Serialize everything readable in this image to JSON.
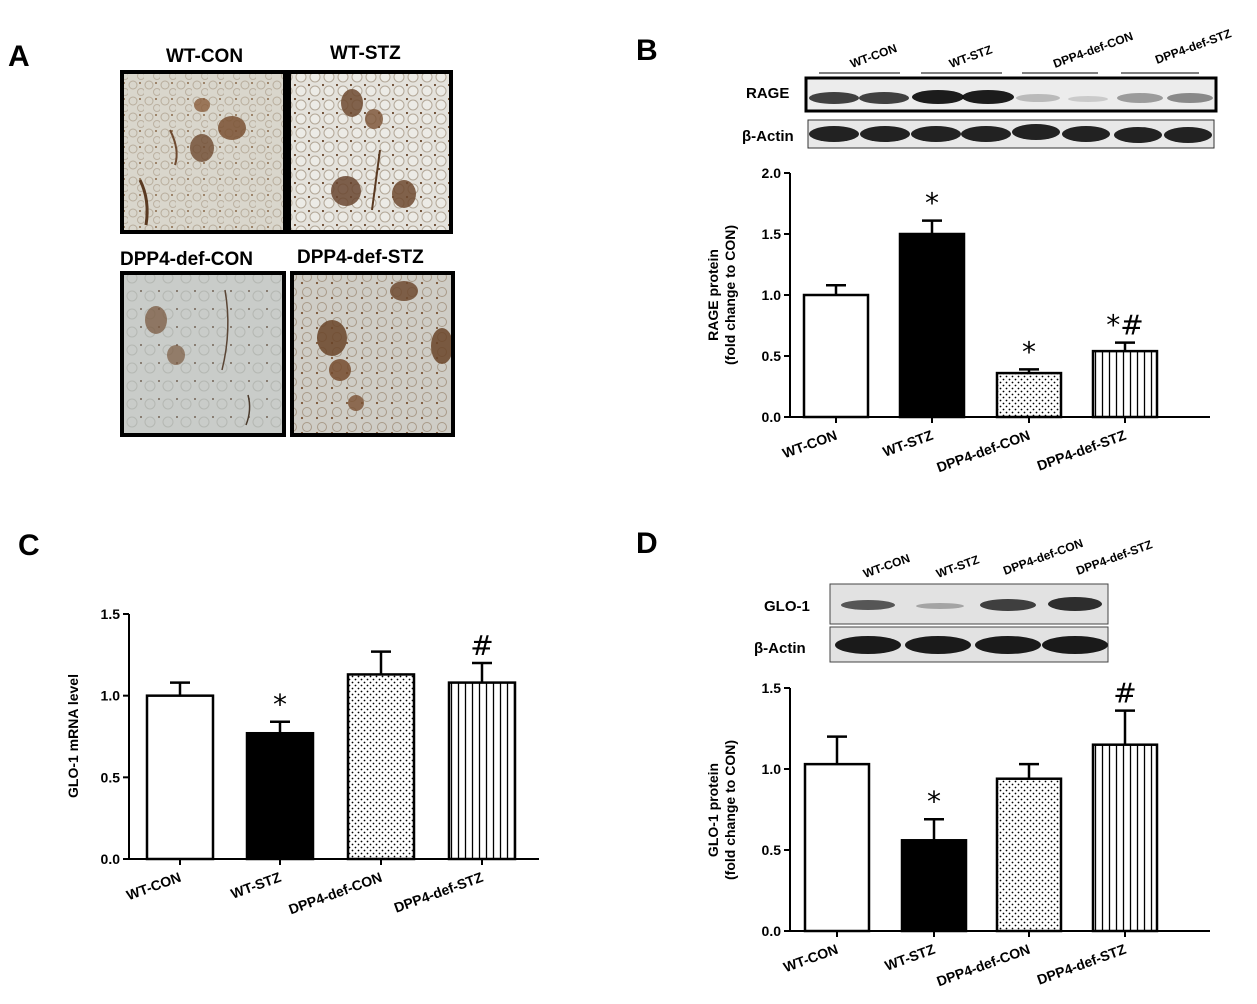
{
  "panel_labels": [
    "A",
    "B",
    "C",
    "D"
  ],
  "panel_a": {
    "images": [
      {
        "label": "WT-CON"
      },
      {
        "label": "WT-STZ"
      },
      {
        "label": "DPP4-def-CON"
      },
      {
        "label": "DPP4-def-STZ"
      }
    ]
  },
  "panel_b_blot": {
    "group_labels": [
      "WT-CON",
      "WT-STZ",
      "DPP4-def-CON",
      "DPP4-def-STZ"
    ],
    "row_labels": [
      "RAGE",
      "β-Actin"
    ]
  },
  "panel_d_blot": {
    "group_labels": [
      "WT-CON",
      "WT-STZ",
      "DPP4-def-CON",
      "DPP4-def-STZ"
    ],
    "row_labels": [
      "GLO-1",
      "β-Actin"
    ]
  },
  "colors": {
    "bar_outline": "#000000",
    "wt_stz_fill": "#000000",
    "wt_con_fill": "#ffffff"
  },
  "chart_data": [
    {
      "panel": "B",
      "type": "bar",
      "categories": [
        "WT-CON",
        "WT-STZ",
        "DPP4-def-CON",
        "DPP4-def-STZ"
      ],
      "values": [
        1.0,
        1.5,
        0.36,
        0.54
      ],
      "errors": [
        0.08,
        0.11,
        0.03,
        0.07
      ],
      "patterns": [
        "open",
        "solid",
        "dots",
        "vertical-lines"
      ],
      "annotations": [
        "",
        "*",
        "*",
        "*#"
      ],
      "ylabel_lines": [
        "RAGE protein",
        "(fold change to CON)"
      ],
      "xlabel": "",
      "ylim": [
        0,
        2.0
      ],
      "yticks": [
        "0.0",
        "0.5",
        "1.0",
        "1.5",
        "2.0"
      ]
    },
    {
      "panel": "C",
      "type": "bar",
      "categories": [
        "WT-CON",
        "WT-STZ",
        "DPP4-def-CON",
        "DPP4-def-STZ"
      ],
      "values": [
        1.0,
        0.77,
        1.13,
        1.08
      ],
      "errors": [
        0.08,
        0.07,
        0.14,
        0.12
      ],
      "patterns": [
        "open",
        "solid",
        "dots",
        "vertical-lines"
      ],
      "annotations": [
        "",
        "*",
        "",
        "#"
      ],
      "ylabel_lines": [
        "GLO-1 mRNA level"
      ],
      "xlabel": "",
      "ylim": [
        0,
        1.5
      ],
      "yticks": [
        "0.0",
        "0.5",
        "1.0",
        "1.5"
      ]
    },
    {
      "panel": "D",
      "type": "bar",
      "categories": [
        "WT-CON",
        "WT-STZ",
        "DPP4-def-CON",
        "DPP4-def-STZ"
      ],
      "values": [
        1.03,
        0.56,
        0.94,
        1.15
      ],
      "errors": [
        0.17,
        0.13,
        0.09,
        0.21
      ],
      "patterns": [
        "open",
        "solid",
        "dots",
        "vertical-lines"
      ],
      "annotations": [
        "",
        "*",
        "",
        "#"
      ],
      "ylabel_lines": [
        "GLO-1 protein",
        "(fold change to CON)"
      ],
      "xlabel": "",
      "ylim": [
        0,
        1.5
      ],
      "yticks": [
        "0.0",
        "0.5",
        "1.0",
        "1.5"
      ]
    }
  ]
}
